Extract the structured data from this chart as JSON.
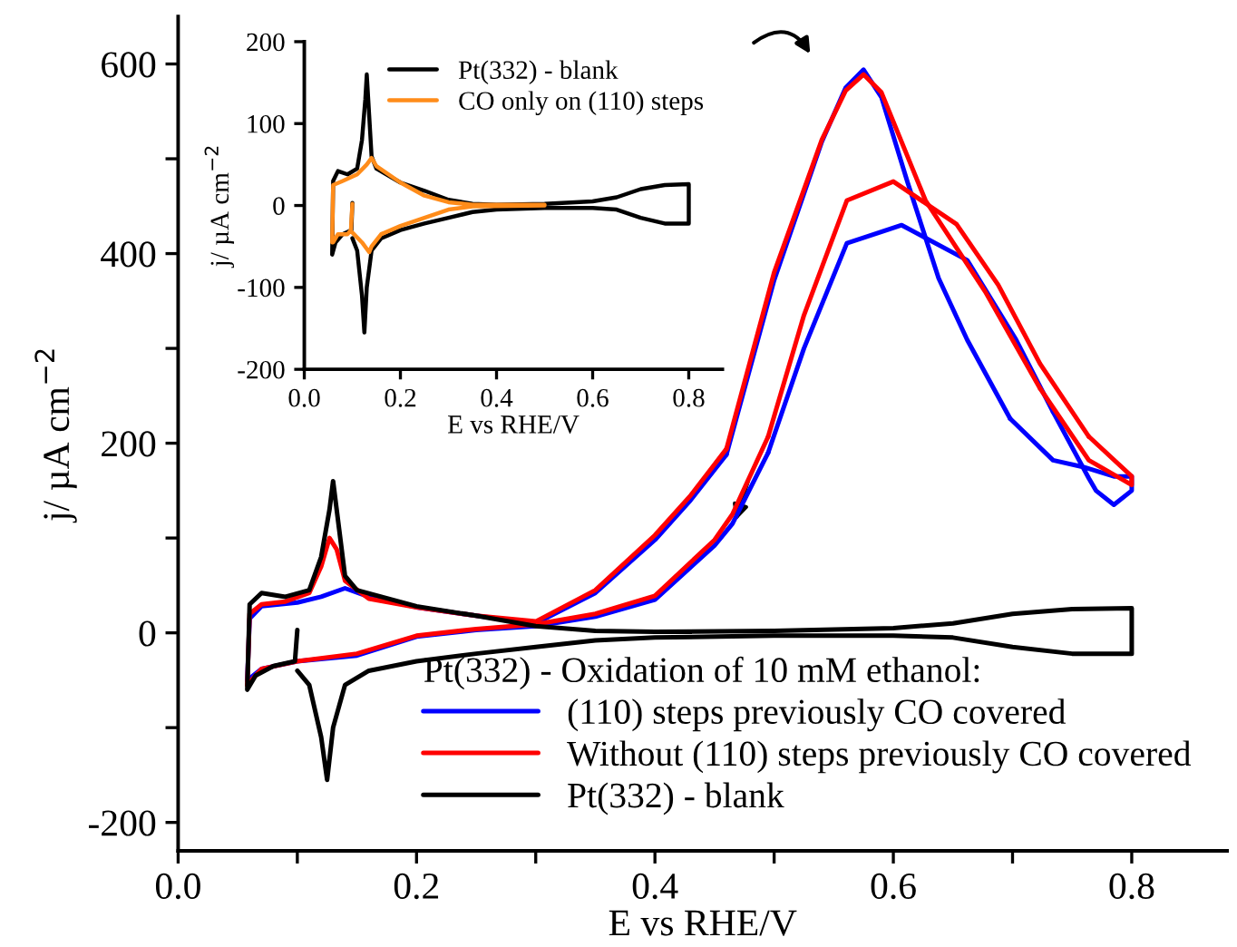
{
  "chart_data": [
    {
      "type": "line",
      "xlabel": "E vs RHE/V",
      "ylabel": "j/ µA cm$^{−2}$",
      "legend_title": "Pt(332) - Oxidation of 10 mM ethanol:",
      "legend": "bottom right",
      "grid": false,
      "marker": "none",
      "line_style": "solid",
      "xlim": [
        0,
        0.88
      ],
      "ylim": [
        -230,
        650
      ],
      "xticks": [
        {
          "value": 0,
          "label": "0.0"
        },
        {
          "value": 0.1,
          "label": null
        },
        {
          "value": 0.2,
          "label": "0.2"
        },
        {
          "value": 0.3,
          "label": null
        },
        {
          "value": 0.4,
          "label": "0.4"
        },
        {
          "value": 0.5,
          "label": null
        },
        {
          "value": 0.6,
          "label": "0.6"
        },
        {
          "value": 0.7,
          "label": null
        },
        {
          "value": 0.8,
          "label": "0.8"
        }
      ],
      "yticks": [
        {
          "value": -200,
          "label": "-200"
        },
        {
          "value": -100,
          "label": null
        },
        0,
        {
          "value": 100,
          "label": null
        },
        200,
        {
          "value": 300,
          "label": null
        },
        400,
        {
          "value": 500,
          "label": null
        },
        600
      ],
      "series": [
        {
          "name": "(110) steps previously CO covered",
          "color": "#0000ff",
          "x": [
            0.058,
            0.06,
            0.07,
            0.1,
            0.12,
            0.14,
            0.16,
            0.2,
            0.25,
            0.3,
            0.35,
            0.4,
            0.43,
            0.46,
            0.5,
            0.54,
            0.56,
            0.575,
            0.59,
            0.612,
            0.638,
            0.662,
            0.698,
            0.734,
            0.759,
            0.785,
            0.8,
            0.8,
            0.785,
            0.77,
            0.764,
            0.734,
            0.703,
            0.662,
            0.607,
            0.561,
            0.525,
            0.495,
            0.465,
            0.45,
            0.4,
            0.35,
            0.3,
            0.25,
            0.2,
            0.15,
            0.1,
            0.07,
            0.058
          ],
          "values": [
            -50,
            15,
            28,
            32,
            38,
            47,
            38,
            27,
            18,
            10,
            42,
            98,
            140,
            188,
            372,
            518,
            575,
            594,
            565,
            475,
            374,
            309,
            226,
            182,
            175,
            165,
            165,
            150,
            135,
            150,
            163,
            233,
            309,
            393,
            430,
            411,
            300,
            190,
            115,
            92,
            35,
            17,
            7,
            3,
            -4,
            -24,
            -30,
            -38,
            -50
          ]
        },
        {
          "name": "Without (110) steps previously CO covered",
          "color": "#ff0000",
          "x": [
            0.058,
            0.06,
            0.07,
            0.09,
            0.11,
            0.12,
            0.127,
            0.133,
            0.14,
            0.16,
            0.2,
            0.25,
            0.3,
            0.35,
            0.4,
            0.43,
            0.46,
            0.5,
            0.54,
            0.56,
            0.575,
            0.59,
            0.627,
            0.677,
            0.723,
            0.764,
            0.8,
            0.8,
            0.764,
            0.723,
            0.688,
            0.653,
            0.6,
            0.561,
            0.525,
            0.495,
            0.465,
            0.45,
            0.4,
            0.35,
            0.3,
            0.25,
            0.2,
            0.15,
            0.1,
            0.07,
            0.058
          ],
          "values": [
            -55,
            20,
            30,
            33,
            42,
            70,
            100,
            88,
            55,
            36,
            27,
            18,
            12,
            45,
            103,
            145,
            194,
            380,
            520,
            572,
            589,
            570,
            456,
            360,
            258,
            182,
            156,
            165,
            207,
            284,
            367,
            431,
            476,
            456,
            335,
            207,
            125,
            98,
            39,
            20,
            9,
            4,
            -3,
            -22,
            -30,
            -38,
            -55
          ]
        },
        {
          "name": "Pt(332) - blank",
          "color": "#000000",
          "x": [
            0.1,
            0.098,
            0.08,
            0.065,
            0.058,
            0.06,
            0.07,
            0.09,
            0.11,
            0.12,
            0.127,
            0.13,
            0.135,
            0.14,
            0.15,
            0.2,
            0.25,
            0.3,
            0.35,
            0.4,
            0.5,
            0.6,
            0.65,
            0.7,
            0.75,
            0.8,
            0.8,
            0.75,
            0.7,
            0.65,
            0.6,
            0.5,
            0.4,
            0.35,
            0.3,
            0.25,
            0.2,
            0.16,
            0.14,
            0.13,
            0.125,
            0.12,
            0.11,
            0.1
          ],
          "values": [
            3,
            -30,
            -35,
            -45,
            -60,
            30,
            42,
            38,
            45,
            80,
            130,
            160,
            110,
            60,
            45,
            28,
            18,
            7,
            2,
            1,
            2,
            5,
            10,
            20,
            25,
            26,
            -22,
            -22,
            -15,
            -5,
            -3,
            -3,
            -5,
            -8,
            -15,
            -22,
            -30,
            -40,
            -55,
            -100,
            -155,
            -110,
            -55,
            -40
          ]
        }
      ]
    },
    {
      "type": "line",
      "xlabel": "E vs RHE/V",
      "ylabel": "j/ µA cm$^{−2}$",
      "legend": "top right",
      "grid": false,
      "marker": "none",
      "line_style": "solid",
      "xlim": [
        0,
        0.87
      ],
      "ylim": [
        -200,
        200
      ],
      "xticks": [
        {
          "value": 0,
          "label": "0.0"
        },
        {
          "value": 0.2,
          "label": "0.2"
        },
        {
          "value": 0.4,
          "label": "0.4"
        },
        {
          "value": 0.6,
          "label": "0.6"
        },
        {
          "value": 0.8,
          "label": "0.8"
        }
      ],
      "yticks": [
        {
          "value": -200,
          "label": "-200"
        },
        {
          "value": -100,
          "label": "-100"
        },
        0,
        100,
        200
      ],
      "series": [
        {
          "name": "Pt(332) - blank",
          "color": "#000000",
          "x": [
            0.1,
            0.098,
            0.08,
            0.065,
            0.058,
            0.06,
            0.07,
            0.09,
            0.11,
            0.12,
            0.127,
            0.13,
            0.135,
            0.14,
            0.15,
            0.2,
            0.25,
            0.3,
            0.35,
            0.4,
            0.5,
            0.6,
            0.65,
            0.7,
            0.75,
            0.8,
            0.8,
            0.75,
            0.7,
            0.65,
            0.6,
            0.5,
            0.4,
            0.35,
            0.3,
            0.25,
            0.2,
            0.16,
            0.14,
            0.13,
            0.125,
            0.12,
            0.11,
            0.1
          ],
          "values": [
            3,
            -30,
            -35,
            -45,
            -60,
            30,
            42,
            38,
            45,
            80,
            130,
            160,
            110,
            60,
            45,
            28,
            18,
            7,
            2,
            1,
            2,
            5,
            10,
            20,
            25,
            26,
            -22,
            -22,
            -15,
            -5,
            -3,
            -3,
            -5,
            -8,
            -15,
            -22,
            -30,
            -40,
            -55,
            -100,
            -155,
            -110,
            -55,
            -40
          ]
        },
        {
          "name": "CO only on (110) steps",
          "color": "#ff8c1a",
          "x": [
            0.1,
            0.097,
            0.09,
            0.07,
            0.06,
            0.058,
            0.06,
            0.08,
            0.11,
            0.13,
            0.14,
            0.15,
            0.2,
            0.25,
            0.3,
            0.35,
            0.5,
            0.5,
            0.35,
            0.3,
            0.25,
            0.2,
            0.16,
            0.14,
            0.135,
            0.12,
            0.1
          ],
          "values": [
            2,
            -30,
            -35,
            -35,
            -45,
            -45,
            25,
            30,
            38,
            50,
            58,
            48,
            28,
            12,
            4,
            1,
            1,
            0,
            -1,
            -5,
            -15,
            -25,
            -35,
            -50,
            -57,
            -45,
            -33
          ]
        }
      ]
    }
  ]
}
